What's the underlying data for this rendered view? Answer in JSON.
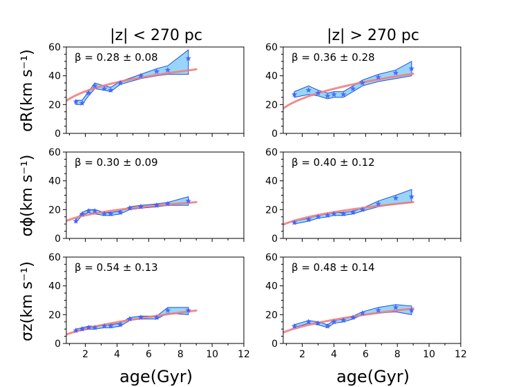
{
  "colors": {
    "band": "#87cefa",
    "band_edge": "#1f4fd6",
    "fit": "#f08080",
    "star": "#3355ff"
  },
  "column_titles": [
    "|z| < 270 pc",
    "|z| > 270 pc"
  ],
  "xlabel": "age(Gyr)",
  "row_ylabels": [
    "σR(km s⁻¹)",
    "σϕ(km s⁻¹)",
    "σz(km s⁻¹)"
  ],
  "chart_data": [
    {
      "type": "line",
      "row": 0,
      "col": 0,
      "xlim": [
        0.8,
        12
      ],
      "ylim": [
        0,
        60
      ],
      "xticks": [
        2,
        4,
        6,
        8,
        10,
        12
      ],
      "yticks": [
        0,
        20,
        40,
        60
      ],
      "beta": "β = 0.28 ± 0.08",
      "points": [
        [
          1.4,
          22
        ],
        [
          1.8,
          21
        ],
        [
          2.2,
          28
        ],
        [
          2.6,
          33
        ],
        [
          3.2,
          31
        ],
        [
          3.6,
          30
        ],
        [
          4.2,
          35
        ],
        [
          5.5,
          40
        ],
        [
          6.5,
          43
        ],
        [
          7.2,
          44
        ],
        [
          8.5,
          52
        ]
      ],
      "band_upper": [
        [
          1.4,
          23
        ],
        [
          1.8,
          23
        ],
        [
          2.2,
          29
        ],
        [
          2.6,
          35
        ],
        [
          3.2,
          33
        ],
        [
          3.6,
          32
        ],
        [
          4.2,
          36
        ],
        [
          5.5,
          41
        ],
        [
          6.5,
          45
        ],
        [
          7.2,
          47
        ],
        [
          8.5,
          58
        ]
      ],
      "band_lower": [
        [
          1.4,
          20
        ],
        [
          1.8,
          20
        ],
        [
          2.2,
          26
        ],
        [
          2.6,
          31
        ],
        [
          3.2,
          30
        ],
        [
          3.6,
          29
        ],
        [
          4.2,
          34
        ],
        [
          5.5,
          38
        ],
        [
          6.5,
          40
        ],
        [
          7.2,
          41
        ],
        [
          8.5,
          41
        ]
      ],
      "fit_range": [
        0.8,
        9.0
      ]
    },
    {
      "type": "line",
      "row": 0,
      "col": 1,
      "xlim": [
        0.8,
        12
      ],
      "ylim": [
        0,
        60
      ],
      "xticks": [
        2,
        4,
        6,
        8,
        10,
        12
      ],
      "yticks": [
        0,
        20,
        40,
        60
      ],
      "beta": "β = 0.36 ± 0.28",
      "points": [
        [
          1.5,
          27
        ],
        [
          2.4,
          30
        ],
        [
          3.0,
          28
        ],
        [
          3.6,
          26
        ],
        [
          4.0,
          27
        ],
        [
          4.6,
          27
        ],
        [
          5.2,
          31
        ],
        [
          5.8,
          35
        ],
        [
          6.8,
          39
        ],
        [
          7.9,
          42
        ],
        [
          8.9,
          45
        ]
      ],
      "band_upper": [
        [
          1.5,
          29
        ],
        [
          2.4,
          33
        ],
        [
          3.0,
          30
        ],
        [
          3.6,
          28
        ],
        [
          4.0,
          29
        ],
        [
          4.6,
          29
        ],
        [
          5.2,
          33
        ],
        [
          5.8,
          37
        ],
        [
          6.8,
          41
        ],
        [
          7.9,
          44
        ],
        [
          8.9,
          50
        ]
      ],
      "band_lower": [
        [
          1.5,
          25
        ],
        [
          2.4,
          27
        ],
        [
          3.0,
          26
        ],
        [
          3.6,
          24
        ],
        [
          4.0,
          25
        ],
        [
          4.6,
          25
        ],
        [
          5.2,
          29
        ],
        [
          5.8,
          33
        ],
        [
          6.8,
          36
        ],
        [
          7.9,
          38
        ],
        [
          8.9,
          40
        ]
      ],
      "fit_range": [
        0.8,
        9.0
      ]
    },
    {
      "type": "line",
      "row": 1,
      "col": 0,
      "xlim": [
        0.8,
        12
      ],
      "ylim": [
        0,
        60
      ],
      "xticks": [
        2,
        4,
        6,
        8,
        10,
        12
      ],
      "yticks": [
        0,
        20,
        40,
        60
      ],
      "beta": "β = 0.30 ± 0.09",
      "points": [
        [
          1.4,
          12
        ],
        [
          1.8,
          17
        ],
        [
          2.2,
          19
        ],
        [
          2.6,
          19
        ],
        [
          3.2,
          17
        ],
        [
          3.6,
          17
        ],
        [
          4.2,
          18
        ],
        [
          4.8,
          21
        ],
        [
          5.5,
          22
        ],
        [
          6.5,
          23
        ],
        [
          7.2,
          24
        ],
        [
          8.5,
          26
        ]
      ],
      "band_upper": [
        [
          1.4,
          13
        ],
        [
          1.8,
          18
        ],
        [
          2.2,
          20
        ],
        [
          2.6,
          20
        ],
        [
          3.2,
          18
        ],
        [
          3.6,
          18
        ],
        [
          4.2,
          19
        ],
        [
          4.8,
          22
        ],
        [
          5.5,
          23
        ],
        [
          6.5,
          24
        ],
        [
          7.2,
          25
        ],
        [
          8.5,
          29
        ]
      ],
      "band_lower": [
        [
          1.4,
          11
        ],
        [
          1.8,
          16
        ],
        [
          2.2,
          18
        ],
        [
          2.6,
          17
        ],
        [
          3.2,
          16
        ],
        [
          3.6,
          16
        ],
        [
          4.2,
          17
        ],
        [
          4.8,
          20
        ],
        [
          5.5,
          21
        ],
        [
          6.5,
          22
        ],
        [
          7.2,
          23
        ],
        [
          8.5,
          23
        ]
      ],
      "fit_range": [
        0.8,
        9.0
      ]
    },
    {
      "type": "line",
      "row": 1,
      "col": 1,
      "xlim": [
        0.8,
        12
      ],
      "ylim": [
        0,
        60
      ],
      "xticks": [
        2,
        4,
        6,
        8,
        10,
        12
      ],
      "yticks": [
        0,
        20,
        40,
        60
      ],
      "beta": "β = 0.40 ± 0.12",
      "points": [
        [
          1.5,
          11
        ],
        [
          2.4,
          13
        ],
        [
          3.0,
          15
        ],
        [
          3.6,
          16
        ],
        [
          4.0,
          17
        ],
        [
          4.6,
          17
        ],
        [
          5.2,
          18
        ],
        [
          5.8,
          20
        ],
        [
          6.8,
          24
        ],
        [
          7.9,
          28
        ],
        [
          8.9,
          29
        ]
      ],
      "band_upper": [
        [
          1.5,
          12
        ],
        [
          2.4,
          14
        ],
        [
          3.0,
          16
        ],
        [
          3.6,
          17
        ],
        [
          4.0,
          18
        ],
        [
          4.6,
          18
        ],
        [
          5.2,
          19
        ],
        [
          5.8,
          21
        ],
        [
          6.8,
          26
        ],
        [
          7.9,
          30
        ],
        [
          8.9,
          34
        ]
      ],
      "band_lower": [
        [
          1.5,
          10
        ],
        [
          2.4,
          12
        ],
        [
          3.0,
          14
        ],
        [
          3.6,
          15
        ],
        [
          4.0,
          16
        ],
        [
          4.6,
          16
        ],
        [
          5.2,
          17
        ],
        [
          5.8,
          19
        ],
        [
          6.8,
          22
        ],
        [
          7.9,
          24
        ],
        [
          8.9,
          25
        ]
      ],
      "fit_range": [
        0.8,
        9.0
      ]
    },
    {
      "type": "line",
      "row": 2,
      "col": 0,
      "xlim": [
        0.8,
        12
      ],
      "ylim": [
        0,
        60
      ],
      "xticks": [
        2,
        4,
        6,
        8,
        10,
        12
      ],
      "yticks": [
        0,
        20,
        40,
        60
      ],
      "beta": "β = 0.54 ± 0.13",
      "points": [
        [
          1.4,
          9
        ],
        [
          1.8,
          10
        ],
        [
          2.2,
          11
        ],
        [
          2.6,
          11
        ],
        [
          3.2,
          12
        ],
        [
          3.6,
          12
        ],
        [
          4.2,
          13
        ],
        [
          4.8,
          17
        ],
        [
          5.5,
          18
        ],
        [
          6.5,
          18
        ],
        [
          7.2,
          23
        ],
        [
          8.5,
          23
        ]
      ],
      "band_upper": [
        [
          1.4,
          10
        ],
        [
          1.8,
          11
        ],
        [
          2.2,
          12
        ],
        [
          2.6,
          12
        ],
        [
          3.2,
          13
        ],
        [
          3.6,
          13
        ],
        [
          4.2,
          14
        ],
        [
          4.8,
          18
        ],
        [
          5.5,
          19
        ],
        [
          6.5,
          19
        ],
        [
          7.2,
          25
        ],
        [
          8.5,
          25
        ]
      ],
      "band_lower": [
        [
          1.4,
          8
        ],
        [
          1.8,
          9
        ],
        [
          2.2,
          10
        ],
        [
          2.6,
          10
        ],
        [
          3.2,
          11
        ],
        [
          3.6,
          11
        ],
        [
          4.2,
          12
        ],
        [
          4.8,
          16
        ],
        [
          5.5,
          17
        ],
        [
          6.5,
          17
        ],
        [
          7.2,
          21
        ],
        [
          8.5,
          20
        ]
      ],
      "fit_range": [
        0.8,
        9.0
      ]
    },
    {
      "type": "line",
      "row": 2,
      "col": 1,
      "xlim": [
        0.8,
        12
      ],
      "ylim": [
        0,
        60
      ],
      "xticks": [
        2,
        4,
        6,
        8,
        10,
        12
      ],
      "yticks": [
        0,
        20,
        40,
        60
      ],
      "beta": "β = 0.48 ± 0.14",
      "points": [
        [
          1.5,
          12
        ],
        [
          2.4,
          15
        ],
        [
          3.0,
          14
        ],
        [
          3.6,
          12
        ],
        [
          4.0,
          15
        ],
        [
          4.6,
          16
        ],
        [
          5.2,
          18
        ],
        [
          5.8,
          21
        ],
        [
          6.8,
          23
        ],
        [
          7.9,
          25
        ],
        [
          8.9,
          23
        ]
      ],
      "band_upper": [
        [
          1.5,
          13
        ],
        [
          2.4,
          16
        ],
        [
          3.0,
          15
        ],
        [
          3.6,
          13
        ],
        [
          4.0,
          16
        ],
        [
          4.6,
          17
        ],
        [
          5.2,
          19
        ],
        [
          5.8,
          22
        ],
        [
          6.8,
          25
        ],
        [
          7.9,
          27
        ],
        [
          8.9,
          26
        ]
      ],
      "band_lower": [
        [
          1.5,
          11
        ],
        [
          2.4,
          14
        ],
        [
          3.0,
          13
        ],
        [
          3.6,
          11
        ],
        [
          4.0,
          14
        ],
        [
          4.6,
          15
        ],
        [
          5.2,
          17
        ],
        [
          5.8,
          20
        ],
        [
          6.8,
          21
        ],
        [
          7.9,
          22
        ],
        [
          8.9,
          20
        ]
      ],
      "fit_range": [
        0.8,
        9.0
      ]
    }
  ]
}
